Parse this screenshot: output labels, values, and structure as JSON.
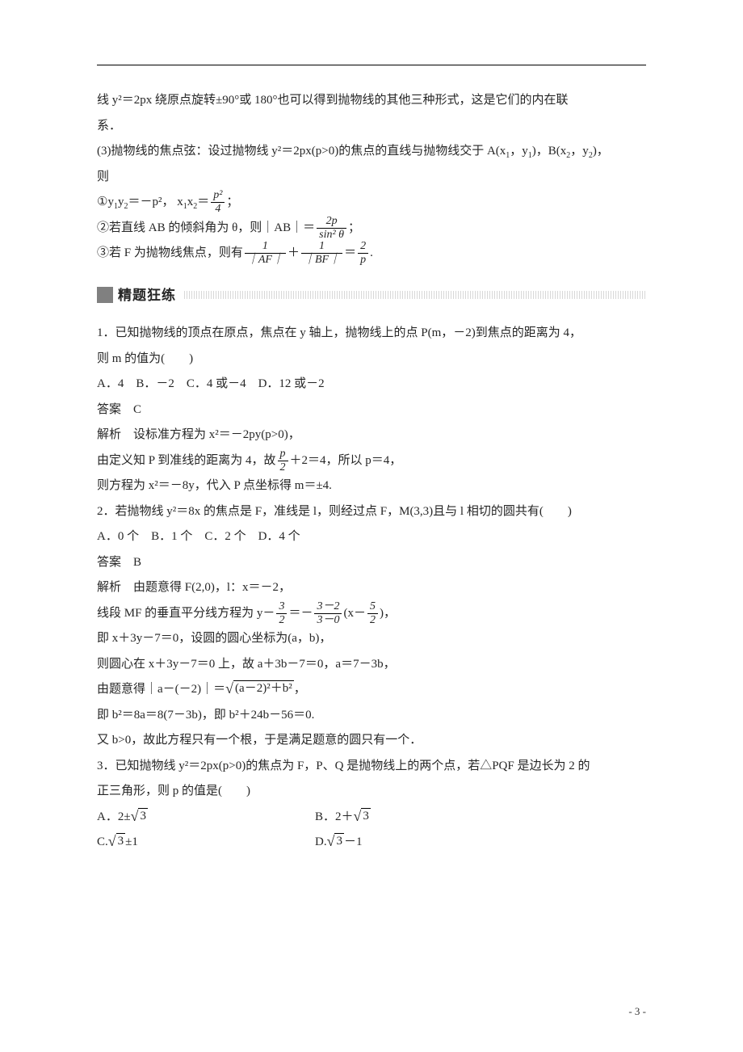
{
  "top_continuation": {
    "l1": "线 y²＝2px 绕原点旋转±90°或 180°也可以得到抛物线的其他三种形式，这是它们的内在联",
    "l2": "系．",
    "l3a": "(3)抛物线的焦点弦：设过抛物线 y²＝2px(p>0)的焦点的直线与抛物线交于 A(x",
    "l3b": "，y",
    "l3c": ")，B(x",
    "l3d": "，y",
    "l3e": ")，",
    "l4": "则",
    "i1_pre": "①y",
    "i1_mid": "y",
    "i1_eq": "＝－p²， x",
    "i1_x2": "x",
    "i1_eq2": "＝",
    "frac1_num": "p²",
    "frac1_den": "4",
    "i2_pre": "②若直线 AB 的倾斜角为 θ，则｜AB｜＝",
    "frac2_num": "2p",
    "frac2_den": "sin² θ",
    "i3_pre": "③若 F 为抛物线焦点，则有",
    "frac3a_num": "1",
    "frac3a_den": "｜AF｜",
    "i3_plus": "＋",
    "frac3b_num": "1",
    "frac3b_den": "｜BF｜",
    "i3_eq": "＝",
    "frac3c_num": "2",
    "frac3c_den": "p",
    "i3_dot": "."
  },
  "section_title": "精题狂练",
  "q1": {
    "l1": "1．已知抛物线的顶点在原点，焦点在 y 轴上，抛物线上的点 P(m，－2)到焦点的距离为 4，",
    "l2": "则 m 的值为(　　)",
    "opts": "A．4　B．－2　C．4 或－4　D．12 或－2",
    "ans": "答案　C",
    "exp1": "解析　设标准方程为 x²＝－2py(p>0)，",
    "exp2_pre": "由定义知 P 到准线的距离为 4，故",
    "frac_num": "p",
    "frac_den": "2",
    "exp2_post": "＋2＝4，所以 p＝4，",
    "exp3": "则方程为 x²＝－8y，代入 P 点坐标得 m＝±4."
  },
  "q2": {
    "l1": "2．若抛物线 y²＝8x 的焦点是 F，准线是 l，则经过点 F，M(3,3)且与 l 相切的圆共有(　　)",
    "opts": "A．0 个　B．1 个　C．2 个　D．4 个",
    "ans": "答案　B",
    "exp1": "解析　由题意得 F(2,0)，l：x＝－2，",
    "exp2_pre": "线段 MF 的垂直平分线方程为 y－",
    "f1_num": "3",
    "f1_den": "2",
    "exp2_mid": "＝－",
    "f2_num": "3－2",
    "f2_den": "3－0",
    "exp2_mid2": "(x－",
    "f3_num": "5",
    "f3_den": "2",
    "exp2_post": ")，",
    "exp3": "即 x＋3y－7＝0，设圆的圆心坐标为(a，b)，",
    "exp4": "则圆心在 x＋3y－7＝0 上，故 a＋3b－7＝0，a＝7－3b，",
    "exp5_pre": "由题意得｜a－(－2)｜＝",
    "sqrt_arg": "(a－2)²＋b²",
    "exp5_post": "，",
    "exp6": "即 b²＝8a＝8(7－3b)，即 b²＋24b－56＝0.",
    "exp7": "又 b>0，故此方程只有一个根，于是满足题意的圆只有一个．"
  },
  "q3": {
    "l1": "3．已知抛物线 y²＝2px(p>0)的焦点为 F，P、Q 是抛物线上的两个点，若△PQF 是边长为 2 的",
    "l2": "正三角形，则 p 的值是(　　)",
    "optA_pre": "A．2±",
    "optA_rt": "3",
    "optB_pre": "B．2＋",
    "optB_rt": "3",
    "optC_txt": "C.",
    "optC_rt": "3",
    "optC_post": "±1",
    "optD_txt": "D.",
    "optD_rt": "3",
    "optD_post": "－1"
  },
  "footer": "- 3 -"
}
